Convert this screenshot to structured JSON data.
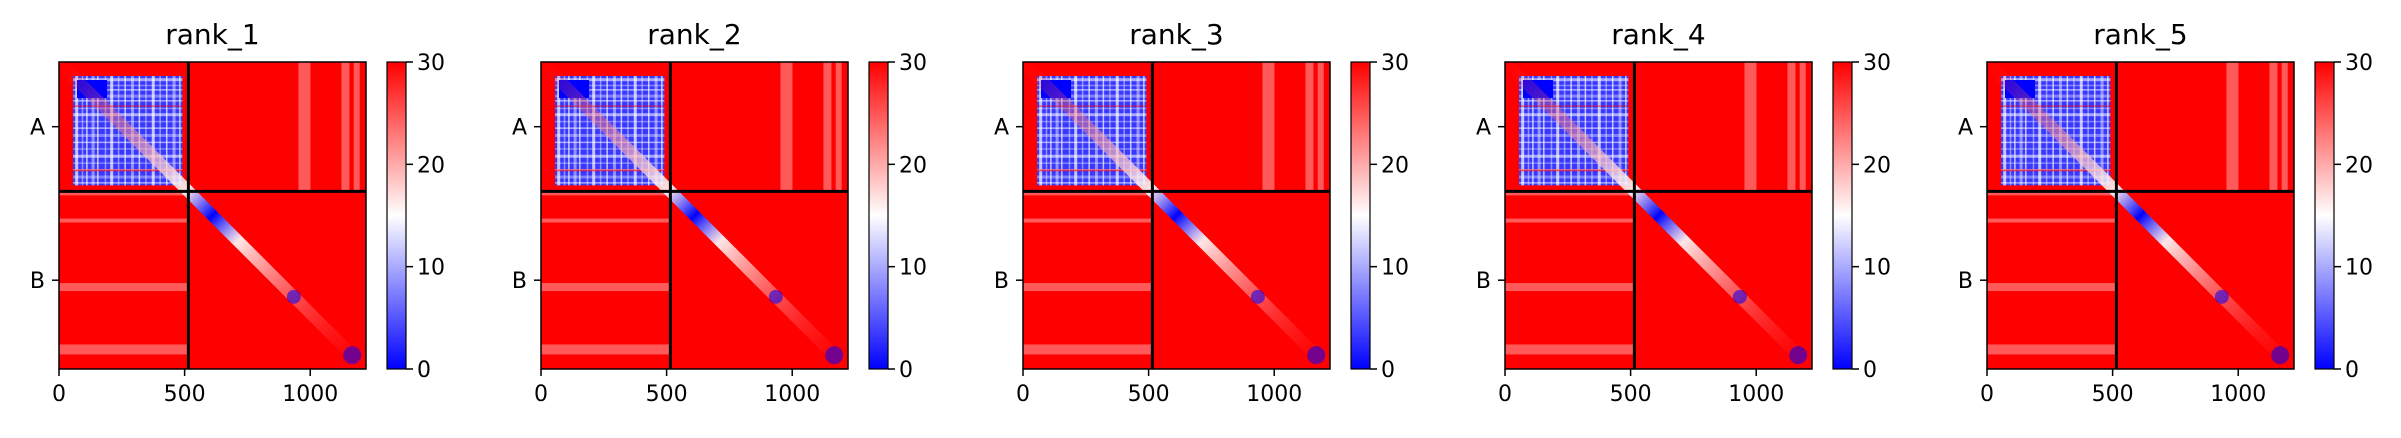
{
  "chart_data": {
    "type": "heatmap",
    "colormap": [
      "#0000ff",
      "#ffffff",
      "#ff0000"
    ],
    "colorbar": {
      "ticks": [
        0,
        10,
        20,
        30
      ],
      "range": [
        0,
        30
      ]
    },
    "x_range": [
      0,
      1222
    ],
    "chain_boundary": 515,
    "x_ticks": [
      0,
      500,
      1000
    ],
    "y_ticks": [
      "A",
      "B"
    ],
    "panels": [
      {
        "title": "rank_1"
      },
      {
        "title": "rank_2"
      },
      {
        "title": "rank_3"
      },
      {
        "title": "rank_4"
      },
      {
        "title": "rank_5"
      }
    ]
  }
}
